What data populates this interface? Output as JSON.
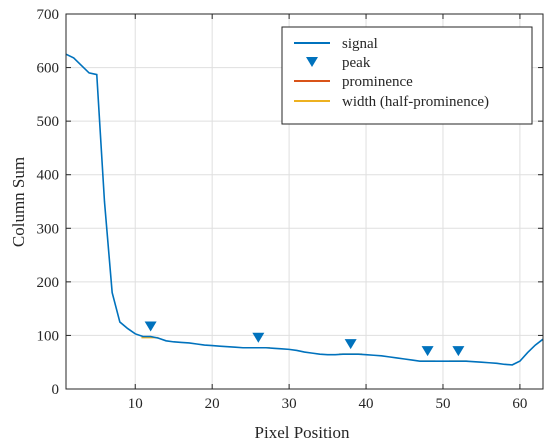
{
  "chart_data": {
    "type": "line",
    "title": "",
    "xlabel": "Pixel Position",
    "ylabel": "Column Sum",
    "xlim": [
      1,
      63
    ],
    "ylim": [
      0,
      700
    ],
    "xticks": [
      10,
      20,
      30,
      40,
      50,
      60
    ],
    "yticks": [
      0,
      100,
      200,
      300,
      400,
      500,
      600,
      700
    ],
    "grid": true,
    "legend_placement": "top-right",
    "series": [
      {
        "name": "signal",
        "color": "#0072BD",
        "x": [
          1,
          2,
          3,
          4,
          5,
          6,
          7,
          8,
          9,
          10,
          11,
          12,
          13,
          14,
          15,
          16,
          17,
          18,
          19,
          20,
          21,
          22,
          23,
          24,
          25,
          26,
          27,
          28,
          29,
          30,
          31,
          32,
          33,
          34,
          35,
          36,
          37,
          38,
          39,
          40,
          41,
          42,
          43,
          44,
          45,
          46,
          47,
          48,
          49,
          50,
          51,
          52,
          53,
          54,
          55,
          56,
          57,
          58,
          59,
          60,
          61,
          62,
          63
        ],
        "y": [
          625,
          618,
          604,
          590,
          587,
          350,
          180,
          125,
          113,
          103,
          98,
          98,
          95,
          90,
          88,
          87,
          86,
          84,
          82,
          81,
          80,
          79,
          78,
          77,
          77,
          77,
          77,
          76,
          75,
          74,
          72,
          69,
          67,
          65,
          64,
          64,
          65,
          65,
          65,
          64,
          63,
          62,
          60,
          58,
          56,
          54,
          52,
          52,
          52,
          52,
          52,
          52,
          52,
          51,
          50,
          49,
          48,
          46,
          45,
          52,
          68,
          82,
          93
        ]
      }
    ],
    "peaks": {
      "name": "peak",
      "color": "#0072BD",
      "x": [
        12,
        26,
        38,
        48,
        52
      ],
      "y": [
        98,
        77,
        65,
        52,
        52
      ]
    },
    "prominence": {
      "name": "prominence",
      "color": "#D95319"
    },
    "widths": {
      "name": "width (half-prominence)",
      "color": "#EDB120",
      "segments": [
        {
          "x0": 10.8,
          "x1": 13.0,
          "y": 96
        },
        {
          "x0": 24.5,
          "x1": 27.5,
          "y": 77
        },
        {
          "x0": 36.5,
          "x1": 39.5,
          "y": 65
        },
        {
          "x0": 47.0,
          "x1": 49.0,
          "y": 52
        },
        {
          "x0": 50.8,
          "x1": 53.2,
          "y": 52
        }
      ]
    }
  }
}
